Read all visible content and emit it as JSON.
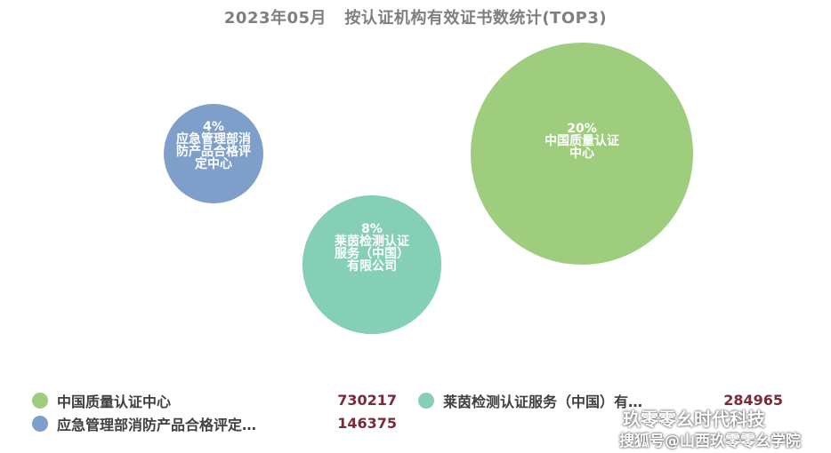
{
  "chart_data": {
    "type": "bubble",
    "title": "2023年05月   按认证机构有效证书数统计(TOP3)",
    "series": [
      {
        "name": "中国质量认证中心",
        "value": 730217,
        "percent": "20%",
        "label_lines": [
          "20%",
          "中国质量认证",
          "中心"
        ],
        "color": "#9fcd7e"
      },
      {
        "name": "莱茵检测认证服务（中国）有…",
        "value": 284965,
        "percent": "8%",
        "label_lines": [
          "8%",
          "莱茵检测认证",
          "服务（中国）",
          "有限公司"
        ],
        "color": "#84cfb5"
      },
      {
        "name": "应急管理部消防产品合格评定…",
        "value": 146375,
        "percent": "4%",
        "label_lines": [
          "4%",
          "应急管理部消",
          "防产品合格评",
          "定中心"
        ],
        "color": "#7f9fcb"
      }
    ]
  },
  "legend": {
    "items": [
      {
        "name": "中国质量认证中心",
        "value": "730217",
        "color": "#9fcd7e"
      },
      {
        "name": "莱茵检测认证服务（中国）有…",
        "value": "284965",
        "color": "#84cfb5"
      },
      {
        "name": "应急管理部消防产品合格评定…",
        "value": "146375",
        "color": "#7f9fcb"
      }
    ]
  },
  "watermark": {
    "line1": "玖零零幺时代科技",
    "line2": "搜狐号@山西玖零零幺学院"
  }
}
